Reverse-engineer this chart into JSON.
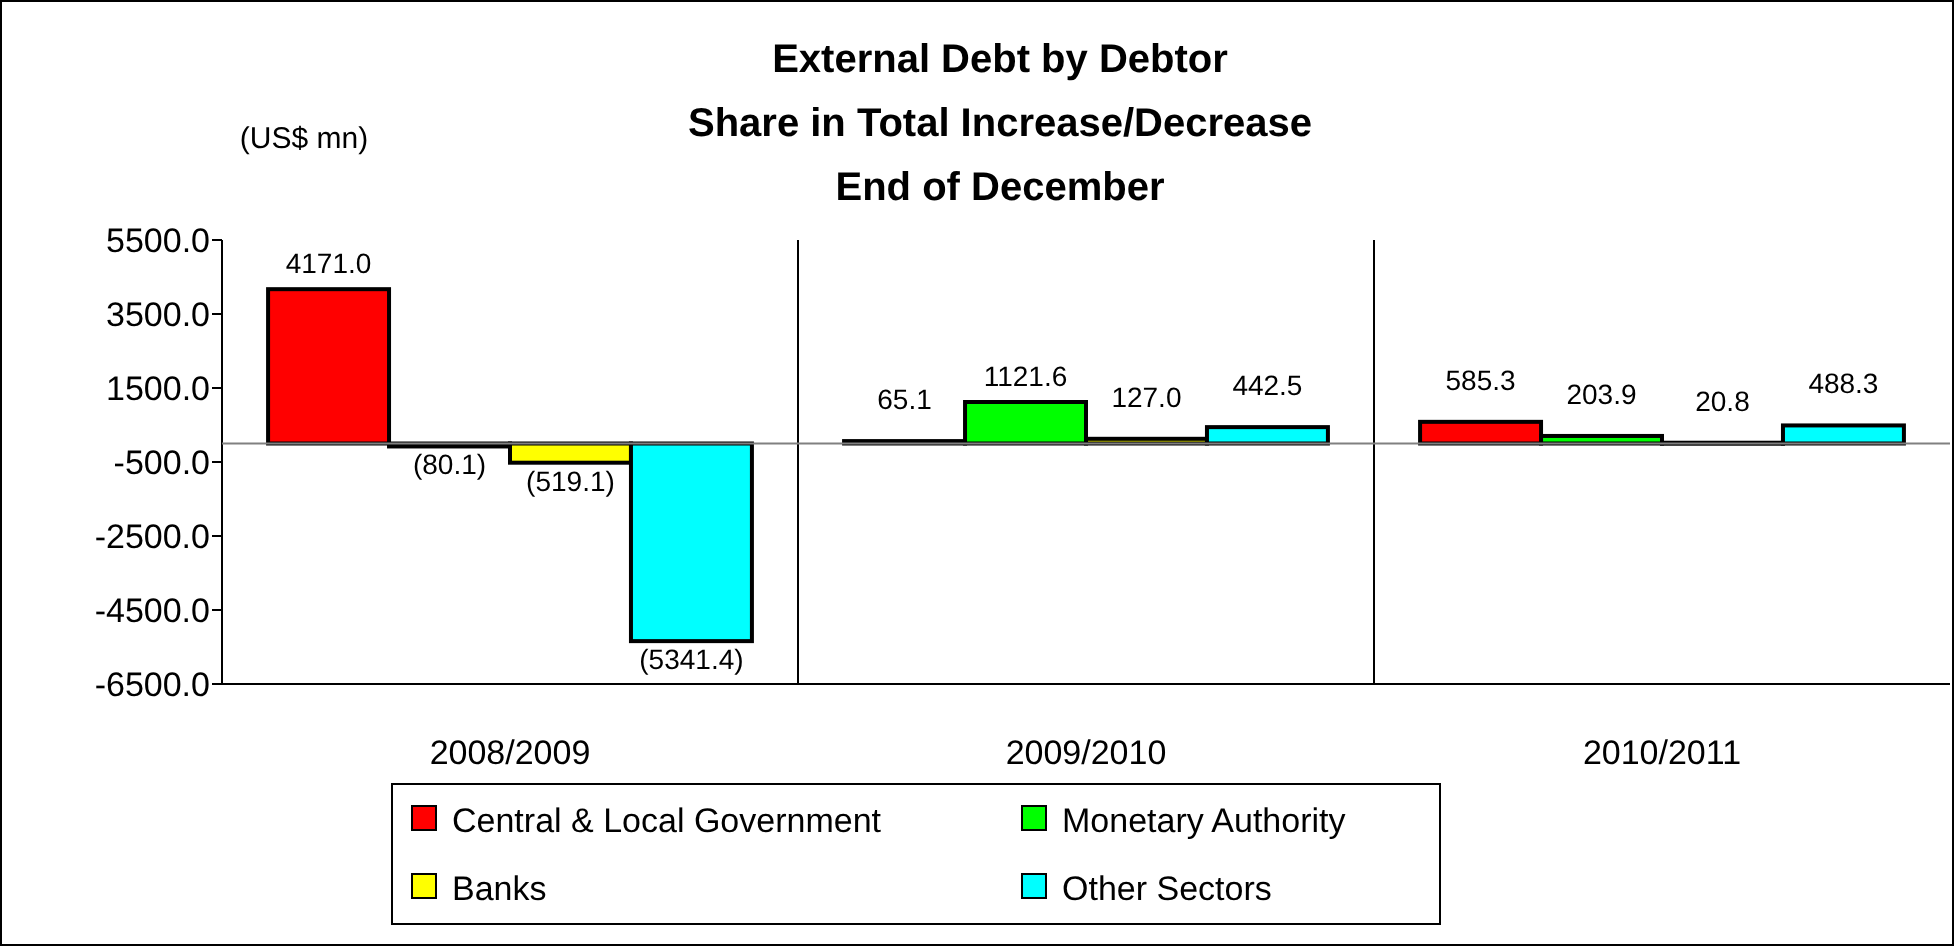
{
  "chart_data": {
    "type": "bar",
    "title": "External Debt by Debtor\nShare in Total Increase/Decrease\nEnd of December",
    "ylabel": "(US$ mn)",
    "categories": [
      "2008/2009",
      "2009/2010",
      "2010/2011"
    ],
    "series": [
      {
        "name": "Central & Local Government",
        "color": "#ff0000",
        "values": [
          4171.0,
          65.1,
          585.3
        ],
        "value_labels": [
          "4171.0",
          "65.1",
          "585.3"
        ]
      },
      {
        "name": "Monetary Authority",
        "color": "#00ff00",
        "values": [
          -80.1,
          1121.6,
          203.9
        ],
        "value_labels": [
          "(80.1)",
          "1121.6",
          "203.9"
        ]
      },
      {
        "name": "Banks",
        "color": "#ffff00",
        "values": [
          -519.1,
          127.0,
          20.8
        ],
        "value_labels": [
          "(519.1)",
          "127.0",
          "20.8"
        ]
      },
      {
        "name": "Other Sectors",
        "color": "#00ffff",
        "values": [
          -5341.4,
          442.5,
          488.3
        ],
        "value_labels": [
          "(5341.4)",
          "442.5",
          "488.3"
        ]
      }
    ],
    "ylim": [
      -6500,
      5500
    ],
    "yticks": [
      {
        "value": 5500,
        "label": "5500.0"
      },
      {
        "value": 3500,
        "label": "3500.0"
      },
      {
        "value": 1500,
        "label": "1500.0"
      },
      {
        "value": -500,
        "label": "-500.0"
      },
      {
        "value": -2500,
        "label": "-2500.0"
      },
      {
        "value": -4500,
        "label": "-4500.0"
      },
      {
        "value": -6500,
        "label": "-6500.0"
      }
    ],
    "grid": "x",
    "legend": "bottom"
  }
}
